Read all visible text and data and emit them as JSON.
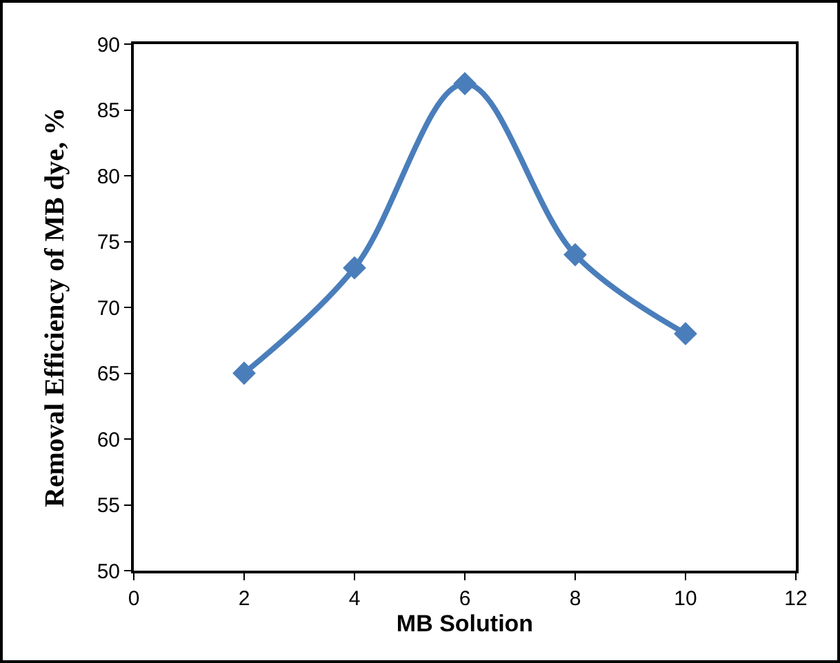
{
  "chart_data": {
    "type": "line",
    "xlabel": "MB Solution",
    "ylabel": "Removal Efficiency of MB dye, %",
    "x": [
      2,
      4,
      6,
      8,
      10
    ],
    "series": [
      {
        "color": "#4a7ebb",
        "values": [
          65,
          73,
          87,
          74,
          68
        ]
      }
    ],
    "xlim": [
      0,
      12
    ],
    "xticks": [
      0,
      2,
      4,
      6,
      8,
      10,
      12
    ],
    "ylim": [
      50,
      90
    ],
    "yticks": [
      50,
      55,
      60,
      65,
      70,
      75,
      80,
      85,
      90
    ],
    "grid": false,
    "marker": "diamond",
    "line_style": "solid"
  }
}
